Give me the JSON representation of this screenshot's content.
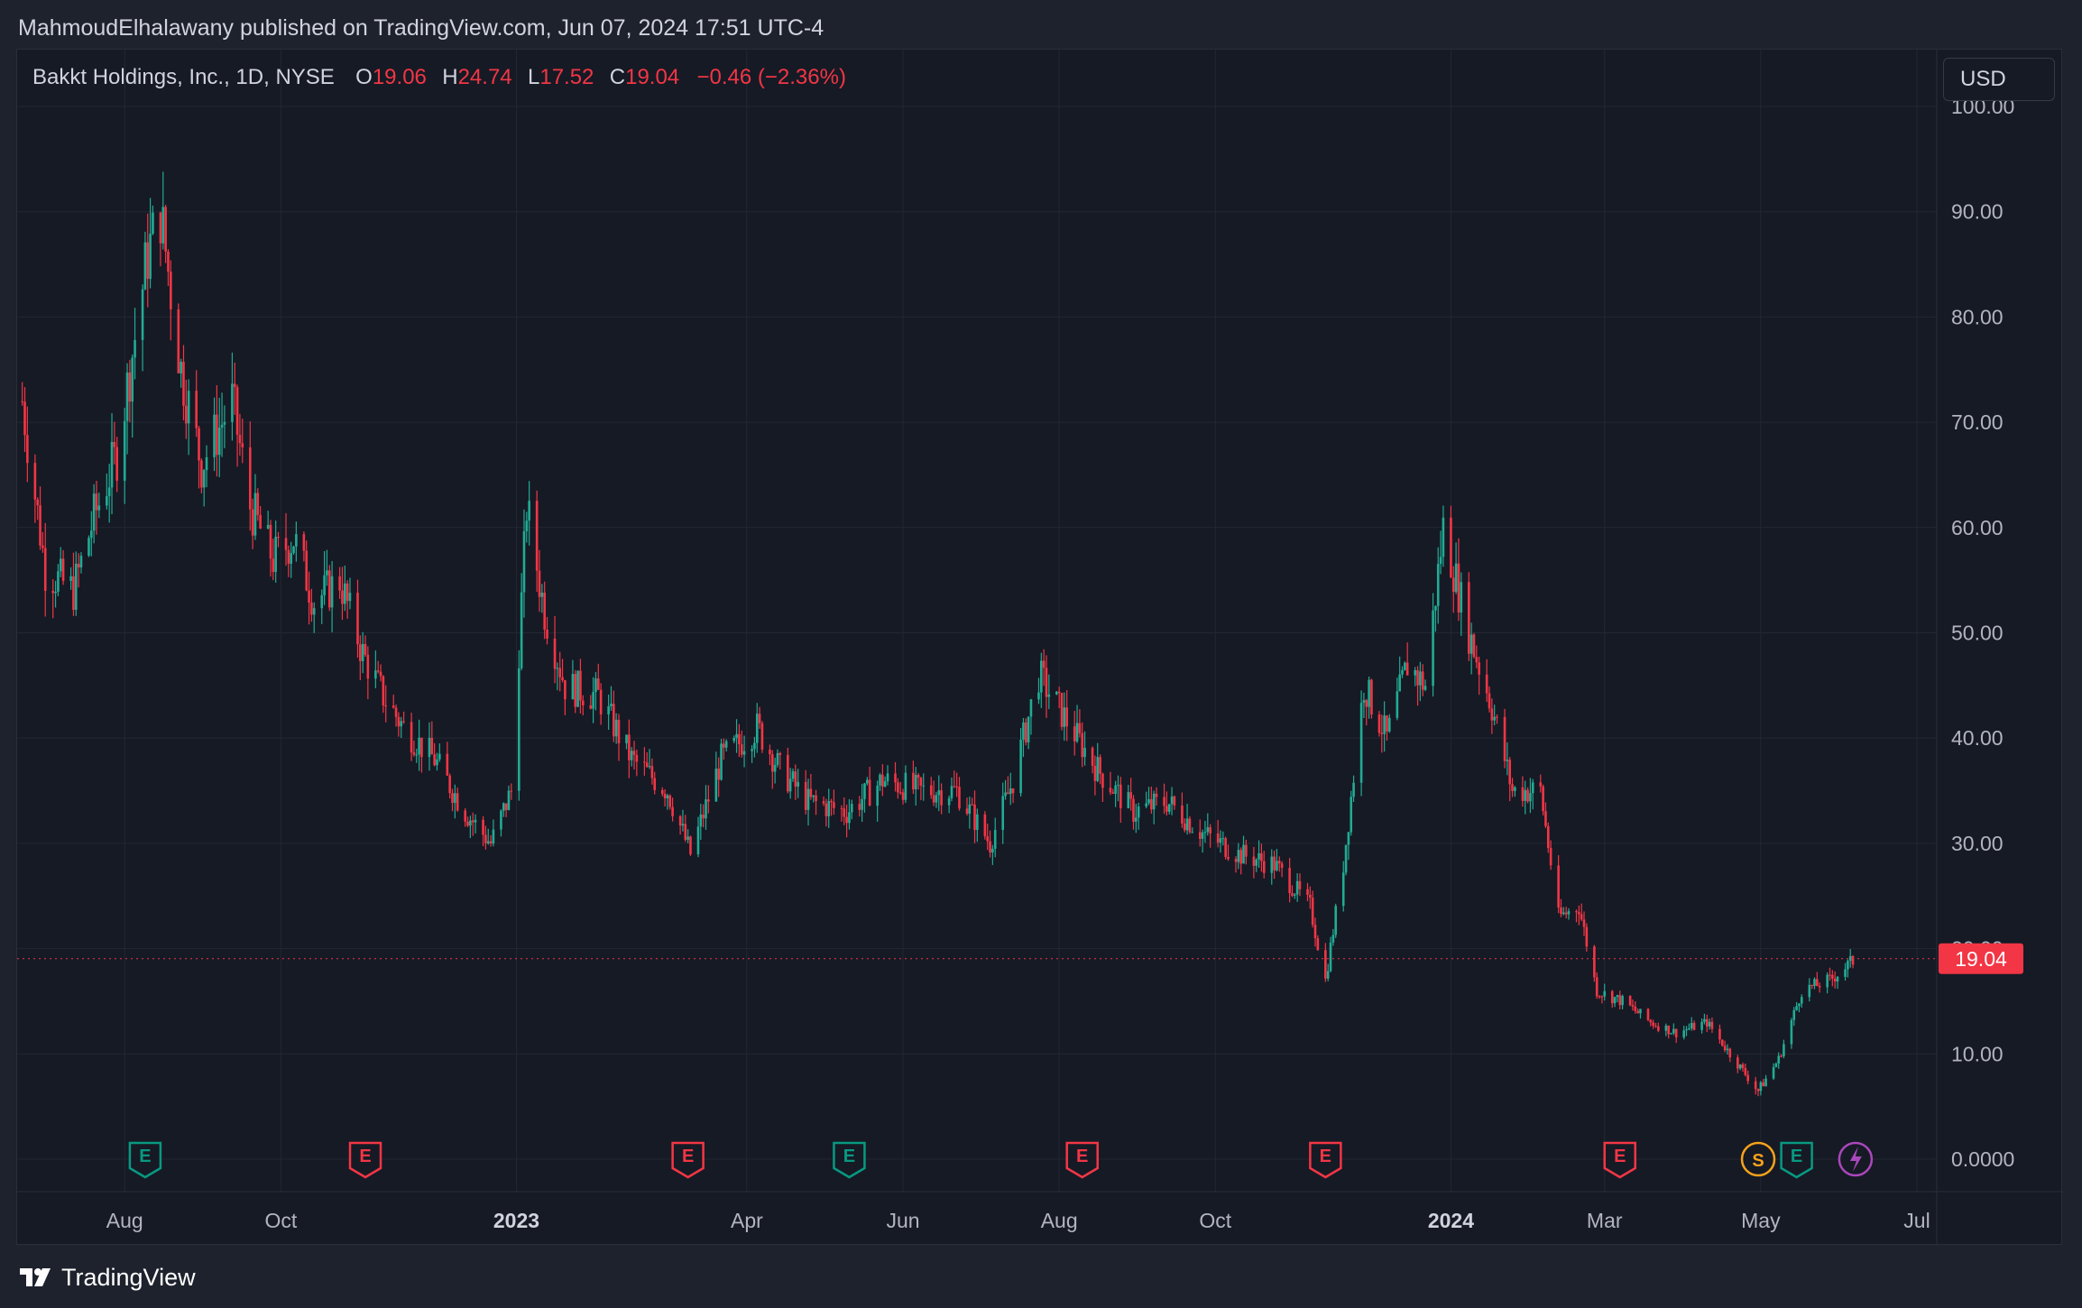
{
  "header": {
    "published_line": "MahmoudElhalawany published on TradingView.com, Jun 07, 2024 17:51 UTC-4"
  },
  "legend": {
    "symbol": "Bakkt Holdings, Inc., 1D, NYSE",
    "open_label": "O",
    "open": "19.06",
    "high_label": "H",
    "high": "24.74",
    "low_label": "L",
    "low": "17.52",
    "close_label": "C",
    "close": "19.04",
    "change": "−0.46 (−2.36%)"
  },
  "toolbar": {
    "currency": "USD"
  },
  "footer": {
    "brand": "TradingView"
  },
  "colors": {
    "up": "#22ab94",
    "down": "#f23645",
    "background": "#161a25",
    "grid": "#232733",
    "earnings": "#f23645",
    "earnings_beat": "#089981",
    "split": "#f7a21b",
    "dividend": "#ab47bc"
  },
  "chart_data": {
    "type": "candlestick",
    "title": "Bakkt Holdings, Inc., 1D, NYSE",
    "currency": "USD",
    "y_ticks": [
      "0.0000",
      "10.00",
      "20.00",
      "30.00",
      "40.00",
      "50.00",
      "60.00",
      "70.00",
      "80.00",
      "90.00",
      "100.00"
    ],
    "ylim": [
      0,
      100
    ],
    "x_ticks": [
      "Aug",
      "Oct",
      "2023",
      "Apr",
      "Jun",
      "Aug",
      "Oct",
      "2024",
      "Mar",
      "May",
      "Jul"
    ],
    "x_ticks_bold": [
      "2023",
      "2024"
    ],
    "last_price": "19.04",
    "grid": true,
    "approx_daily_close_path": [
      {
        "date": "2022-06-22",
        "close": 72
      },
      {
        "date": "2022-07-01",
        "close": 56
      },
      {
        "date": "2022-07-12",
        "close": 54
      },
      {
        "date": "2022-07-20",
        "close": 61
      },
      {
        "date": "2022-07-29",
        "close": 67
      },
      {
        "date": "2022-08-10",
        "close": 86
      },
      {
        "date": "2022-08-15",
        "close": 90
      },
      {
        "date": "2022-08-23",
        "close": 75
      },
      {
        "date": "2022-08-31",
        "close": 66
      },
      {
        "date": "2022-09-12",
        "close": 72
      },
      {
        "date": "2022-09-19",
        "close": 62
      },
      {
        "date": "2022-09-28",
        "close": 57
      },
      {
        "date": "2022-10-06",
        "close": 59
      },
      {
        "date": "2022-10-14",
        "close": 53
      },
      {
        "date": "2022-10-24",
        "close": 55
      },
      {
        "date": "2022-11-02",
        "close": 48
      },
      {
        "date": "2022-11-10",
        "close": 44
      },
      {
        "date": "2022-11-18",
        "close": 41
      },
      {
        "date": "2022-11-30",
        "close": 38
      },
      {
        "date": "2022-12-12",
        "close": 33
      },
      {
        "date": "2022-12-22",
        "close": 30
      },
      {
        "date": "2022-12-30",
        "close": 35
      },
      {
        "date": "2023-01-05",
        "close": 62
      },
      {
        "date": "2023-01-12",
        "close": 52
      },
      {
        "date": "2023-01-20",
        "close": 45
      },
      {
        "date": "2023-02-02",
        "close": 44
      },
      {
        "date": "2023-02-15",
        "close": 38
      },
      {
        "date": "2023-03-01",
        "close": 35
      },
      {
        "date": "2023-03-10",
        "close": 29
      },
      {
        "date": "2023-03-22",
        "close": 38
      },
      {
        "date": "2023-04-05",
        "close": 41
      },
      {
        "date": "2023-04-14",
        "close": 37
      },
      {
        "date": "2023-04-25",
        "close": 34
      },
      {
        "date": "2023-05-10",
        "close": 33
      },
      {
        "date": "2023-05-24",
        "close": 36
      },
      {
        "date": "2023-06-08",
        "close": 35
      },
      {
        "date": "2023-06-22",
        "close": 35
      },
      {
        "date": "2023-07-05",
        "close": 30
      },
      {
        "date": "2023-07-14",
        "close": 36
      },
      {
        "date": "2023-07-24",
        "close": 46
      },
      {
        "date": "2023-08-03",
        "close": 42
      },
      {
        "date": "2023-08-16",
        "close": 37
      },
      {
        "date": "2023-08-30",
        "close": 33
      },
      {
        "date": "2023-09-12",
        "close": 34
      },
      {
        "date": "2023-09-26",
        "close": 31
      },
      {
        "date": "2023-10-10",
        "close": 29
      },
      {
        "date": "2023-10-24",
        "close": 28
      },
      {
        "date": "2023-11-07",
        "close": 24
      },
      {
        "date": "2023-11-13",
        "close": 17
      },
      {
        "date": "2023-11-20",
        "close": 28
      },
      {
        "date": "2023-11-28",
        "close": 45
      },
      {
        "date": "2023-12-07",
        "close": 40
      },
      {
        "date": "2023-12-15",
        "close": 47
      },
      {
        "date": "2023-12-22",
        "close": 45
      },
      {
        "date": "2023-12-29",
        "close": 60
      },
      {
        "date": "2024-01-08",
        "close": 50
      },
      {
        "date": "2024-01-17",
        "close": 43
      },
      {
        "date": "2024-01-25",
        "close": 35
      },
      {
        "date": "2024-02-05",
        "close": 35
      },
      {
        "date": "2024-02-12",
        "close": 23
      },
      {
        "date": "2024-02-20",
        "close": 24
      },
      {
        "date": "2024-02-27",
        "close": 16
      },
      {
        "date": "2024-03-08",
        "close": 15
      },
      {
        "date": "2024-03-19",
        "close": 13
      },
      {
        "date": "2024-03-29",
        "close": 12
      },
      {
        "date": "2024-04-10",
        "close": 13
      },
      {
        "date": "2024-04-19",
        "close": 10
      },
      {
        "date": "2024-04-30",
        "close": 6.5
      },
      {
        "date": "2024-05-08",
        "close": 9.5
      },
      {
        "date": "2024-05-17",
        "close": 16
      },
      {
        "date": "2024-05-28",
        "close": 17
      },
      {
        "date": "2024-06-07",
        "close": 19.04
      }
    ],
    "events": [
      {
        "type": "E",
        "date": "2022-08-09",
        "kind": "beat"
      },
      {
        "type": "E",
        "date": "2022-11-03",
        "kind": "miss"
      },
      {
        "type": "E",
        "date": "2023-03-09",
        "kind": "miss"
      },
      {
        "type": "E",
        "date": "2023-05-11",
        "kind": "beat"
      },
      {
        "type": "E",
        "date": "2023-08-10",
        "kind": "miss"
      },
      {
        "type": "E",
        "date": "2023-11-13",
        "kind": "miss"
      },
      {
        "type": "E",
        "date": "2024-03-07",
        "kind": "miss"
      },
      {
        "type": "S",
        "date": "2024-04-30",
        "kind": "split"
      },
      {
        "type": "E",
        "date": "2024-05-15",
        "kind": "beat"
      },
      {
        "type": "D",
        "date": "2024-06-07",
        "kind": "dividend"
      }
    ]
  }
}
